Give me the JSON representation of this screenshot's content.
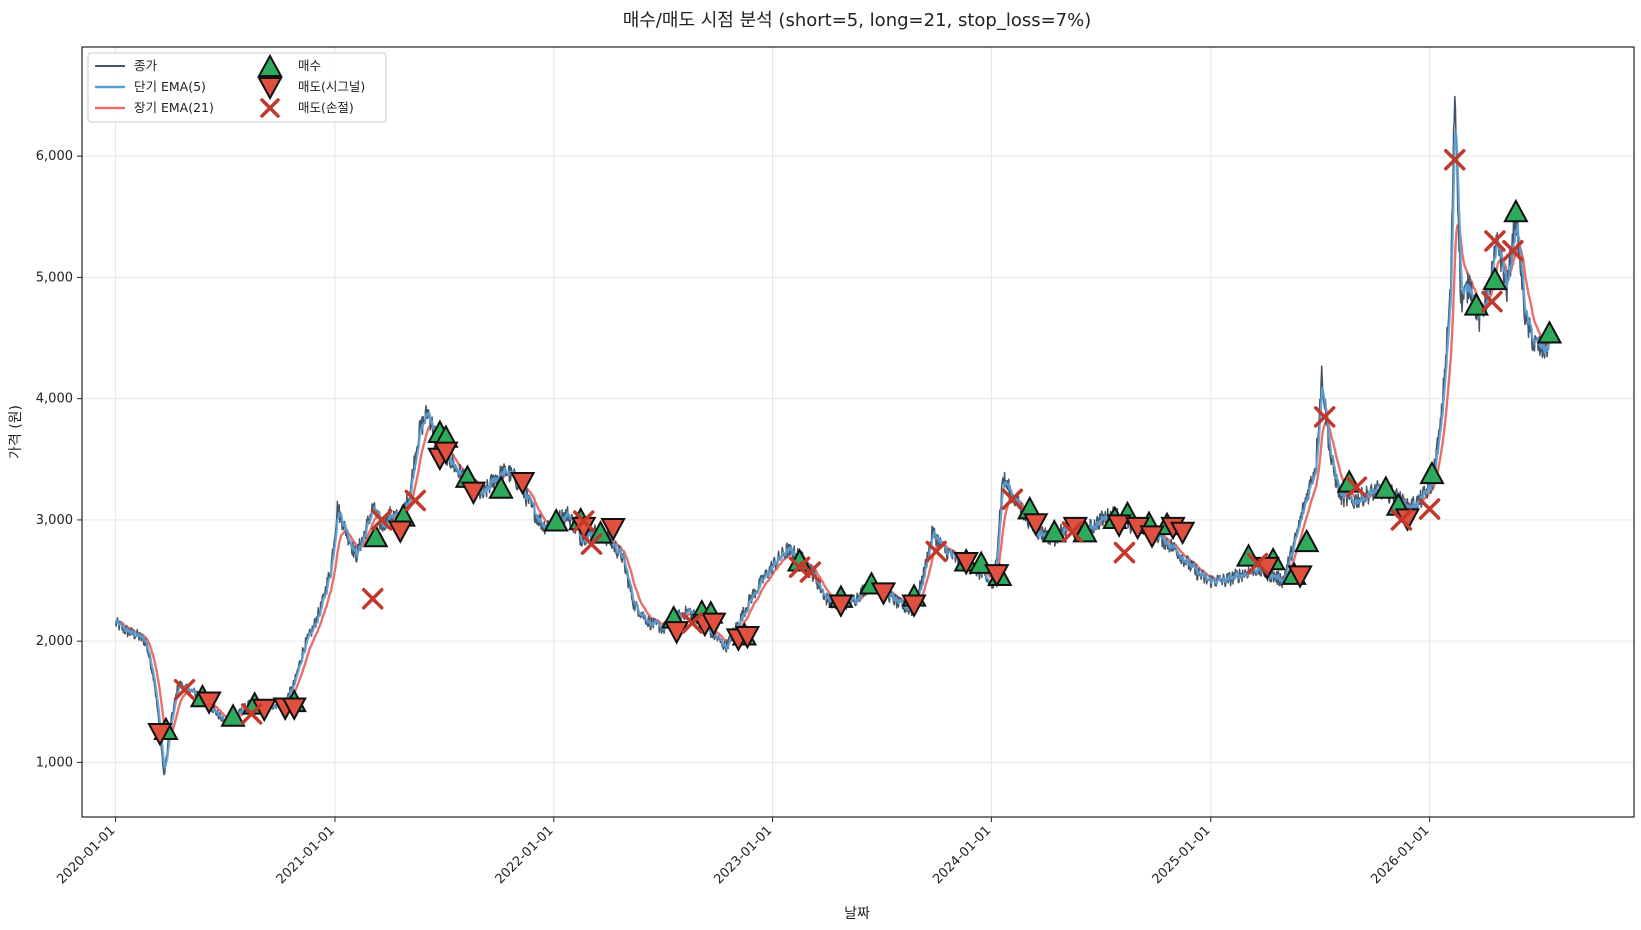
{
  "chart_data": {
    "type": "line",
    "title": "매수/매도 시점 분석 (short=5, long=21, stop_loss=7%)",
    "xlabel": "날짜",
    "ylabel": "가격 (원)",
    "xlim": [
      "2019-11-06",
      "2026-12-08"
    ],
    "ylim": [
      550,
      6900
    ],
    "x_ticks": [
      "2020-01-01",
      "2021-01-01",
      "2022-01-01",
      "2023-01-01",
      "2024-01-01",
      "2025-01-01",
      "2026-01-01"
    ],
    "y_ticks": [
      1000,
      2000,
      3000,
      4000,
      5000,
      6000
    ],
    "y_tick_labels": [
      "1,000",
      "2,000",
      "3,000",
      "4,000",
      "5,000",
      "6,000"
    ],
    "grid": true,
    "legend_position": "top-left",
    "colors": {
      "close": "#445566",
      "ema_short": "#5a9fd4",
      "ema_long": "#e8706a",
      "buy": "#2eaa5c",
      "sell_signal": "#e0503e",
      "sell_stop": "#c0392b"
    },
    "legend": [
      {
        "key": "close",
        "label": "종가",
        "marker": "line"
      },
      {
        "key": "ema_short",
        "label": "단기 EMA(5)",
        "marker": "line"
      },
      {
        "key": "ema_long",
        "label": "장기 EMA(21)",
        "marker": "line"
      },
      {
        "key": "buy",
        "label": "매수",
        "marker": "triangle-up"
      },
      {
        "key": "sell_signal",
        "label": "매도(시그널)",
        "marker": "triangle-down"
      },
      {
        "key": "sell_stop",
        "label": "매도(손절)",
        "marker": "x"
      }
    ],
    "price_path": [
      [
        "2020-01-01",
        2150
      ],
      [
        "2020-01-20",
        2080
      ],
      [
        "2020-02-05",
        2050
      ],
      [
        "2020-02-20",
        2000
      ],
      [
        "2020-03-05",
        1700
      ],
      [
        "2020-03-15",
        1250
      ],
      [
        "2020-03-22",
        880
      ],
      [
        "2020-04-01",
        1300
      ],
      [
        "2020-04-15",
        1650
      ],
      [
        "2020-05-01",
        1600
      ],
      [
        "2020-05-20",
        1560
      ],
      [
        "2020-06-10",
        1450
      ],
      [
        "2020-07-01",
        1330
      ],
      [
        "2020-07-20",
        1380
      ],
      [
        "2020-08-10",
        1480
      ],
      [
        "2020-09-01",
        1450
      ],
      [
        "2020-09-20",
        1470
      ],
      [
        "2020-10-10",
        1500
      ],
      [
        "2020-10-25",
        1650
      ],
      [
        "2020-11-10",
        1950
      ],
      [
        "2020-11-25",
        2100
      ],
      [
        "2020-12-10",
        2300
      ],
      [
        "2020-12-25",
        2600
      ],
      [
        "2021-01-05",
        3100
      ],
      [
        "2021-01-20",
        2900
      ],
      [
        "2021-02-05",
        2700
      ],
      [
        "2021-02-20",
        2900
      ],
      [
        "2021-03-05",
        3100
      ],
      [
        "2021-03-20",
        2950
      ],
      [
        "2021-04-05",
        3050
      ],
      [
        "2021-04-20",
        3000
      ],
      [
        "2021-05-05",
        3200
      ],
      [
        "2021-05-20",
        3700
      ],
      [
        "2021-06-05",
        3900
      ],
      [
        "2021-06-20",
        3650
      ],
      [
        "2021-07-05",
        3550
      ],
      [
        "2021-07-25",
        3400
      ],
      [
        "2021-08-15",
        3300
      ],
      [
        "2021-09-05",
        3200
      ],
      [
        "2021-09-25",
        3350
      ],
      [
        "2021-10-15",
        3400
      ],
      [
        "2021-11-05",
        3300
      ],
      [
        "2021-11-25",
        3100
      ],
      [
        "2021-12-15",
        2950
      ],
      [
        "2022-01-05",
        3000
      ],
      [
        "2022-01-25",
        3050
      ],
      [
        "2022-02-15",
        2850
      ],
      [
        "2022-03-10",
        2900
      ],
      [
        "2022-04-01",
        2850
      ],
      [
        "2022-04-25",
        2700
      ],
      [
        "2022-05-15",
        2300
      ],
      [
        "2022-06-10",
        2150
      ],
      [
        "2022-07-05",
        2100
      ],
      [
        "2022-07-25",
        2200
      ],
      [
        "2022-08-15",
        2250
      ],
      [
        "2022-09-05",
        2150
      ],
      [
        "2022-09-25",
        2050
      ],
      [
        "2022-10-15",
        1950
      ],
      [
        "2022-11-05",
        2150
      ],
      [
        "2022-11-25",
        2350
      ],
      [
        "2022-12-15",
        2500
      ],
      [
        "2023-01-05",
        2650
      ],
      [
        "2023-01-25",
        2750
      ],
      [
        "2023-02-15",
        2700
      ],
      [
        "2023-03-10",
        2550
      ],
      [
        "2023-04-01",
        2350
      ],
      [
        "2023-04-25",
        2300
      ],
      [
        "2023-05-20",
        2350
      ],
      [
        "2023-06-15",
        2500
      ],
      [
        "2023-07-10",
        2400
      ],
      [
        "2023-08-01",
        2300
      ],
      [
        "2023-08-25",
        2250
      ],
      [
        "2023-09-10",
        2550
      ],
      [
        "2023-09-25",
        2900
      ],
      [
        "2023-10-15",
        2750
      ],
      [
        "2023-11-10",
        2650
      ],
      [
        "2023-12-05",
        2600
      ],
      [
        "2023-12-25",
        2500
      ],
      [
        "2024-01-05",
        2450
      ],
      [
        "2024-01-20",
        3350
      ],
      [
        "2024-02-05",
        3200
      ],
      [
        "2024-02-25",
        3050
      ],
      [
        "2024-03-20",
        2900
      ],
      [
        "2024-04-15",
        2850
      ],
      [
        "2024-05-10",
        2950
      ],
      [
        "2024-06-05",
        2900
      ],
      [
        "2024-07-01",
        3000
      ],
      [
        "2024-07-25",
        3050
      ],
      [
        "2024-08-20",
        2950
      ],
      [
        "2024-09-15",
        2950
      ],
      [
        "2024-10-10",
        2850
      ],
      [
        "2024-11-05",
        2750
      ],
      [
        "2024-12-01",
        2600
      ],
      [
        "2024-12-25",
        2500
      ],
      [
        "2025-01-25",
        2500
      ],
      [
        "2025-02-20",
        2550
      ],
      [
        "2025-03-15",
        2600
      ],
      [
        "2025-04-10",
        2550
      ],
      [
        "2025-05-01",
        2500
      ],
      [
        "2025-05-20",
        2800
      ],
      [
        "2025-06-10",
        3200
      ],
      [
        "2025-06-25",
        3450
      ],
      [
        "2025-07-05",
        4200
      ],
      [
        "2025-07-20",
        3500
      ],
      [
        "2025-08-05",
        3200
      ],
      [
        "2025-08-25",
        3150
      ],
      [
        "2025-09-15",
        3200
      ],
      [
        "2025-10-10",
        3250
      ],
      [
        "2025-11-05",
        3200
      ],
      [
        "2025-11-25",
        3100
      ],
      [
        "2025-12-15",
        3150
      ],
      [
        "2026-01-05",
        3300
      ],
      [
        "2026-01-20",
        3800
      ],
      [
        "2026-02-05",
        4900
      ],
      [
        "2026-02-12",
        6580
      ],
      [
        "2026-02-22",
        4800
      ],
      [
        "2026-03-10",
        4950
      ],
      [
        "2026-03-25",
        4650
      ],
      [
        "2026-04-10",
        4900
      ],
      [
        "2026-04-25",
        5300
      ],
      [
        "2026-05-10",
        4900
      ],
      [
        "2026-05-25",
        5500
      ],
      [
        "2026-06-10",
        4650
      ],
      [
        "2026-06-25",
        4450
      ],
      [
        "2026-07-10",
        4400
      ],
      [
        "2026-07-20",
        4450
      ]
    ],
    "buys": [
      [
        "2020-03-25",
        1270
      ],
      [
        "2020-05-25",
        1540
      ],
      [
        "2020-07-15",
        1380
      ],
      [
        "2020-08-20",
        1480
      ],
      [
        "2020-10-25",
        1500
      ],
      [
        "2021-03-10",
        2860
      ],
      [
        "2021-04-25",
        3030
      ],
      [
        "2021-06-25",
        3720
      ],
      [
        "2021-07-05",
        3680
      ],
      [
        "2021-08-10",
        3350
      ],
      [
        "2021-10-05",
        3260
      ],
      [
        "2022-01-05",
        2990
      ],
      [
        "2022-02-15",
        3000
      ],
      [
        "2022-03-20",
        2890
      ],
      [
        "2022-07-20",
        2190
      ],
      [
        "2022-09-05",
        2240
      ],
      [
        "2022-09-20",
        2230
      ],
      [
        "2022-11-15",
        2050
      ],
      [
        "2023-02-15",
        2660
      ],
      [
        "2023-04-25",
        2360
      ],
      [
        "2023-06-15",
        2470
      ],
      [
        "2023-08-25",
        2370
      ],
      [
        "2023-11-20",
        2660
      ],
      [
        "2023-12-15",
        2640
      ],
      [
        "2024-01-15",
        2540
      ],
      [
        "2024-03-05",
        3090
      ],
      [
        "2024-04-15",
        2900
      ],
      [
        "2024-06-05",
        2900
      ],
      [
        "2024-07-25",
        3010
      ],
      [
        "2024-08-15",
        3050
      ],
      [
        "2024-09-20",
        2970
      ],
      [
        "2024-10-20",
        2960
      ],
      [
        "2025-03-05",
        2700
      ],
      [
        "2025-04-15",
        2670
      ],
      [
        "2025-05-20",
        2550
      ],
      [
        "2025-06-10",
        2820
      ],
      [
        "2025-08-20",
        3310
      ],
      [
        "2025-10-20",
        3260
      ],
      [
        "2025-11-10",
        3120
      ],
      [
        "2026-01-05",
        3380
      ],
      [
        "2026-03-20",
        4770
      ],
      [
        "2026-04-20",
        4980
      ],
      [
        "2026-05-25",
        5540
      ],
      [
        "2026-07-20",
        4540
      ]
    ],
    "sells_signal": [
      [
        "2020-03-15",
        1240
      ],
      [
        "2020-06-05",
        1500
      ],
      [
        "2020-09-05",
        1440
      ],
      [
        "2020-10-10",
        1450
      ],
      [
        "2020-10-25",
        1450
      ],
      [
        "2021-04-20",
        2910
      ],
      [
        "2021-06-25",
        3510
      ],
      [
        "2021-07-05",
        3560
      ],
      [
        "2021-08-20",
        3230
      ],
      [
        "2021-11-10",
        3310
      ],
      [
        "2022-02-20",
        2940
      ],
      [
        "2022-04-10",
        2930
      ],
      [
        "2022-07-25",
        2080
      ],
      [
        "2022-09-10",
        2140
      ],
      [
        "2022-09-25",
        2150
      ],
      [
        "2022-11-05",
        2020
      ],
      [
        "2022-11-20",
        2040
      ],
      [
        "2023-04-25",
        2300
      ],
      [
        "2023-07-05",
        2400
      ],
      [
        "2023-08-25",
        2300
      ],
      [
        "2023-11-20",
        2650
      ],
      [
        "2024-01-10",
        2550
      ],
      [
        "2024-03-15",
        2970
      ],
      [
        "2024-05-20",
        2940
      ],
      [
        "2024-08-01",
        2960
      ],
      [
        "2024-09-01",
        2940
      ],
      [
        "2024-09-25",
        2870
      ],
      [
        "2024-10-30",
        2940
      ],
      [
        "2024-11-15",
        2900
      ],
      [
        "2025-04-05",
        2610
      ],
      [
        "2025-05-30",
        2540
      ],
      [
        "2025-11-25",
        3010
      ]
    ],
    "sells_stop": [
      [
        "2020-04-25",
        1600
      ],
      [
        "2020-08-15",
        1400
      ],
      [
        "2021-03-05",
        2350
      ],
      [
        "2021-03-20",
        3000
      ],
      [
        "2021-05-15",
        3160
      ],
      [
        "2022-02-20",
        2990
      ],
      [
        "2022-03-05",
        2800
      ],
      [
        "2022-08-20",
        2150
      ],
      [
        "2023-02-15",
        2610
      ],
      [
        "2023-03-05",
        2570
      ],
      [
        "2023-10-01",
        2740
      ],
      [
        "2024-02-05",
        3170
      ],
      [
        "2024-05-15",
        2900
      ],
      [
        "2024-08-10",
        2730
      ],
      [
        "2025-03-20",
        2640
      ],
      [
        "2025-07-10",
        3850
      ],
      [
        "2025-09-01",
        3270
      ],
      [
        "2025-11-15",
        3000
      ],
      [
        "2026-01-01",
        3090
      ],
      [
        "2026-02-12",
        5970
      ],
      [
        "2026-04-15",
        4800
      ],
      [
        "2026-04-20",
        5300
      ],
      [
        "2026-05-20",
        5220
      ]
    ]
  }
}
